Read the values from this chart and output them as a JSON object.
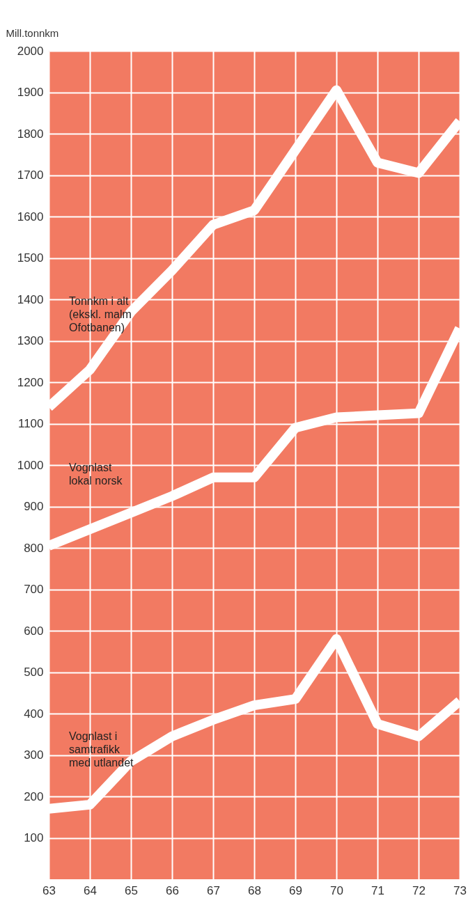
{
  "chart_data": {
    "type": "line",
    "ylabel": "Mill.tonnkm",
    "x": [
      63,
      64,
      65,
      66,
      67,
      68,
      69,
      70,
      71,
      72,
      73
    ],
    "xlim": [
      63,
      73
    ],
    "xticks": [
      63,
      64,
      65,
      66,
      67,
      68,
      69,
      70,
      71,
      72,
      73
    ],
    "ylim": [
      0,
      2000
    ],
    "yticks": [
      100,
      200,
      300,
      400,
      500,
      600,
      700,
      800,
      900,
      1000,
      1100,
      1200,
      1300,
      1400,
      1500,
      1600,
      1700,
      1800,
      1900,
      2000
    ],
    "grid": true,
    "marker": "none",
    "line_style": "solid",
    "series": [
      {
        "name": "Tonnkm i alt\n(ekskl. malm\nOfotbanen)",
        "color": "#ffffff",
        "values": [
          1140,
          1230,
          1370,
          1470,
          1580,
          1615,
          1760,
          1905,
          1730,
          1705,
          1830
        ]
      },
      {
        "name": "Vognlast\nlokal norsk",
        "color": "#ffffff",
        "values": [
          805,
          845,
          885,
          925,
          970,
          970,
          1090,
          1115,
          1120,
          1125,
          1330
        ]
      },
      {
        "name": "Vognlast i\nsamtrafikk\nmed utlandet",
        "color": "#ffffff",
        "values": [
          170,
          180,
          285,
          345,
          385,
          420,
          435,
          580,
          375,
          345,
          430
        ]
      }
    ]
  }
}
